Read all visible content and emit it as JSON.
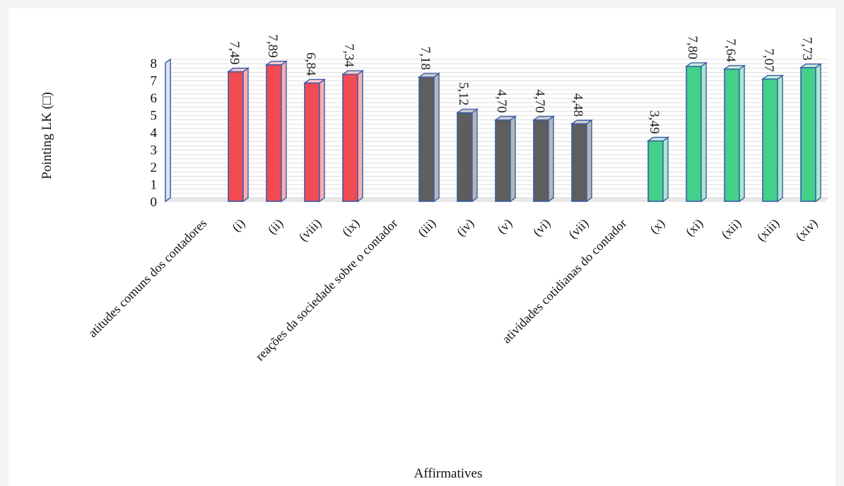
{
  "chart_data": {
    "type": "bar",
    "ylabel": "Pointing LK (□)",
    "xlabel": "Affirmatives",
    "ylim": [
      0,
      8
    ],
    "yticks": [
      "0",
      "1",
      "2",
      "3",
      "4",
      "5",
      "6",
      "7",
      "8"
    ],
    "categories": [
      "atitudes comuns dos contadores",
      "(i)",
      "(ii)",
      "(viii)",
      "(ix)",
      "reações da sociedade sobre o contador",
      "(iii)",
      "(iv)",
      "(v)",
      "(vi)",
      "(vii)",
      "atividades cotidianas do contador",
      "(x)",
      "(xi)",
      "(xii)",
      "(xiii)",
      "(xiv)"
    ],
    "values": [
      null,
      7.49,
      7.89,
      6.84,
      7.34,
      null,
      7.18,
      5.12,
      4.7,
      4.7,
      4.48,
      null,
      3.49,
      7.8,
      7.64,
      7.07,
      7.73
    ],
    "value_labels": [
      "",
      "7,49",
      "7,89",
      "6,84",
      "7,34",
      "",
      "7,18",
      "5,12",
      "4,70",
      "4,70",
      "4,48",
      "",
      "3,49",
      "7,80",
      "7,64",
      "7,07",
      "7,73"
    ],
    "groups": [
      {
        "name": "atitudes comuns dos contadores",
        "color": "#f24b52"
      },
      {
        "name": "reações da sociedade sobre o contador",
        "color": "#5e5e5e"
      },
      {
        "name": "atividades cotidianas do contador",
        "color": "#42d08a"
      }
    ],
    "group_of": [
      null,
      0,
      0,
      0,
      0,
      null,
      1,
      1,
      1,
      1,
      1,
      null,
      2,
      2,
      2,
      2,
      2
    ],
    "outline_color": "#3a5ca8",
    "grid": true,
    "grid_color": "#d4d4d4"
  }
}
